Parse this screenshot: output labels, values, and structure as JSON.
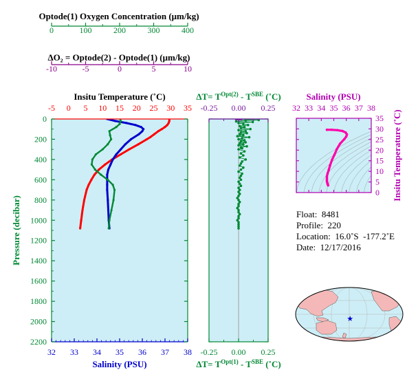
{
  "colors": {
    "temperature": "#ff0000",
    "salinity": "#0000cc",
    "oxygen": "#008833",
    "delta_o2": "#8a008a",
    "pressure": "#008833",
    "panel_bg": "#cdeef6",
    "profile_ts": "#ff00aa"
  },
  "info": {
    "float": "Float:  8481",
    "profile": "Profile:  220",
    "location": "Location:  16.0˚S  -177.2˚E",
    "date": "Date:  12/17/2016"
  },
  "map": {
    "marker_icon": "star-icon",
    "marker_lat": -16.0,
    "marker_lon": -177.2
  },
  "chart_data": [
    {
      "type": "line",
      "panel": "main-profile",
      "ylabel": "Pressure (decibar)",
      "ylim": [
        2200,
        0
      ],
      "yticks": [
        "0",
        "200",
        "400",
        "600",
        "800",
        "1000",
        "1200",
        "1400",
        "1600",
        "1800",
        "2000",
        "2200"
      ],
      "axes": {
        "oxygen": {
          "label": "Optode(1) Oxygen Concentration (μm/kg)",
          "lim": [
            0,
            400
          ],
          "ticks": [
            "0",
            "100",
            "200",
            "300",
            "400"
          ]
        },
        "delta_o2": {
          "label": "ΔO₂ = Optode(2) - Optode(1)   (μm/kg)",
          "lim": [
            -10,
            10
          ],
          "ticks": [
            "-10",
            "-5",
            "0",
            "5",
            "10"
          ]
        },
        "temperature": {
          "label": "Insitu Temperature (˚C)",
          "lim": [
            -5,
            35
          ],
          "ticks": [
            "-5",
            "0",
            "5",
            "10",
            "15",
            "20",
            "25",
            "30",
            "35"
          ]
        },
        "salinity": {
          "label": "Salinity (PSU)",
          "lim": [
            32,
            38
          ],
          "ticks": [
            "32",
            "33",
            "34",
            "35",
            "36",
            "37",
            "38"
          ]
        }
      },
      "series": [
        {
          "color_key": "temperature",
          "pressure": [
            0,
            20,
            40,
            60,
            80,
            100,
            120,
            150,
            180,
            200,
            250,
            300,
            350,
            400,
            450,
            500,
            550,
            600,
            650,
            700,
            800,
            900,
            1000,
            1080
          ],
          "values": [
            29.6,
            29.6,
            29.4,
            29.0,
            28.3,
            27.4,
            26.4,
            25.2,
            24.0,
            23.0,
            20.5,
            17.8,
            15.3,
            12.8,
            10.7,
            8.9,
            7.6,
            6.7,
            5.9,
            5.3,
            4.6,
            4.1,
            3.7,
            3.4
          ]
        },
        {
          "color_key": "salinity",
          "pressure": [
            0,
            20,
            40,
            60,
            80,
            100,
            120,
            150,
            200,
            250,
            300,
            350,
            400,
            450,
            500,
            550,
            600,
            650,
            700,
            800,
            900,
            1000,
            1080
          ],
          "values": [
            34.45,
            34.8,
            35.3,
            35.7,
            35.95,
            36.05,
            36.0,
            35.85,
            35.5,
            35.25,
            35.05,
            34.85,
            34.7,
            34.6,
            34.5,
            34.45,
            34.45,
            34.45,
            34.45,
            34.48,
            34.5,
            34.52,
            34.55
          ]
        },
        {
          "color_key": "oxygen",
          "pressure": [
            0,
            20,
            50,
            80,
            120,
            160,
            200,
            250,
            300,
            350,
            400,
            450,
            500,
            550,
            600,
            650,
            700,
            800,
            900,
            1000,
            1080
          ],
          "values": [
            202,
            203,
            200,
            190,
            170,
            172,
            175,
            165,
            150,
            130,
            120,
            118,
            128,
            145,
            165,
            180,
            185,
            182,
            176,
            170,
            168
          ]
        }
      ]
    },
    {
      "type": "scatter",
      "panel": "delta-t",
      "xlabel_top": "ΔT= T^(Opt(2)) - T^(SBE) (˚C)",
      "xlabel_bottom": "ΔT= T^(Opt(1)) - T^(SBE) (˚C)",
      "xlim": [
        -0.25,
        0.25
      ],
      "ticks": [
        "-0.25",
        "0.00",
        "0.25"
      ],
      "top_label": {
        "pre": "ΔT= T",
        "sup1": "Opt(2)",
        "mid": " - T",
        "sup2": "SBE",
        "post": " (˚C)"
      },
      "bottom_label": {
        "pre": "ΔT= T",
        "sup1": "Opt(1)",
        "mid": " - T",
        "sup2": "SBE",
        "post": " (˚C)"
      },
      "series": [
        {
          "color_key": "oxygen",
          "pressure": [
            5,
            10,
            15,
            25,
            30,
            40,
            50,
            60,
            70,
            80,
            90,
            100,
            110,
            120,
            130,
            140,
            150,
            160,
            170,
            180,
            190,
            200,
            210,
            220,
            230,
            240,
            250,
            260,
            270,
            280,
            290,
            300,
            320,
            340,
            360,
            380,
            400,
            420,
            440,
            460,
            480,
            500,
            520,
            540,
            560,
            580,
            600,
            620,
            640,
            660,
            680,
            700,
            720,
            740,
            760,
            780,
            800,
            820,
            840,
            860,
            880,
            900,
            920,
            940,
            960,
            980,
            1000,
            1020,
            1040,
            1060,
            1080
          ],
          "values": [
            0.0,
            0.17,
            0.06,
            -0.02,
            0.12,
            0.0,
            0.04,
            0.08,
            0.01,
            0.05,
            0.02,
            0.1,
            0.0,
            0.06,
            0.02,
            0.07,
            0.01,
            0.04,
            -0.01,
            0.09,
            0.03,
            0.0,
            0.05,
            0.02,
            0.06,
            0.01,
            0.04,
            0.0,
            0.07,
            0.02,
            0.03,
            0.0,
            0.05,
            0.02,
            0.04,
            0.01,
            0.06,
            0.03,
            0.02,
            0.01,
            0.04,
            0.02,
            0.0,
            0.03,
            0.02,
            0.01,
            0.02,
            0.0,
            0.01,
            0.02,
            0.0,
            0.01,
            0.0,
            0.01,
            0.0,
            -0.01,
            0.0,
            0.01,
            0.0,
            0.0,
            -0.01,
            0.0,
            0.0,
            0.01,
            0.0,
            0.0,
            -0.01,
            0.0,
            0.0,
            0.0,
            0.0
          ]
        }
      ],
      "zero_line": true
    },
    {
      "type": "scatter",
      "panel": "ts-diagram",
      "xlabel": "Salinity (PSU)",
      "ylabel": "Insitu Temperature (˚C)",
      "xlim": [
        32,
        38
      ],
      "ylim": [
        0,
        35
      ],
      "xticks": [
        "32",
        "33",
        "34",
        "35",
        "36",
        "37",
        "38"
      ],
      "yticks": [
        "0",
        "5",
        "10",
        "15",
        "20",
        "25",
        "30",
        "35"
      ],
      "series": [
        {
          "color_key": "profile_ts",
          "x": [
            34.45,
            34.8,
            35.3,
            35.7,
            35.95,
            36.05,
            36.0,
            35.85,
            35.5,
            35.25,
            35.05,
            34.85,
            34.7,
            34.6,
            34.5,
            34.45,
            34.45,
            34.45,
            34.45,
            34.48,
            34.5,
            34.52,
            34.55
          ],
          "y": [
            29.6,
            29.6,
            29.4,
            29.0,
            28.3,
            27.4,
            26.4,
            25.2,
            23.0,
            20.5,
            17.8,
            15.3,
            12.8,
            10.7,
            8.9,
            7.6,
            6.7,
            5.9,
            5.3,
            4.6,
            4.1,
            3.7,
            3.4
          ]
        }
      ]
    }
  ]
}
